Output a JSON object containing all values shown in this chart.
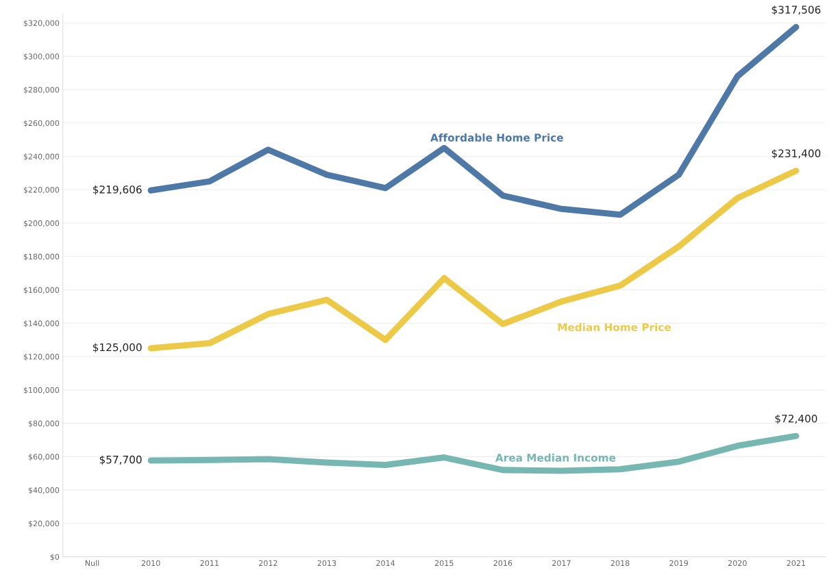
{
  "chart_data": {
    "type": "line",
    "categories": [
      "Null",
      "2010",
      "2011",
      "2012",
      "2013",
      "2014",
      "2015",
      "2016",
      "2017",
      "2018",
      "2019",
      "2020",
      "2021"
    ],
    "series": [
      {
        "name": "Affordable Home Price",
        "color": "#4e79a7",
        "values": [
          null,
          219606,
          225000,
          244000,
          229000,
          221000,
          245000,
          216500,
          208500,
          205000,
          229000,
          288000,
          317506
        ],
        "value_labels": [
          null,
          "$219,606",
          null,
          null,
          null,
          null,
          null,
          null,
          null,
          null,
          null,
          null,
          "$317,506"
        ]
      },
      {
        "name": "Median Home Price",
        "color": "#edc948",
        "values": [
          null,
          125000,
          128000,
          145500,
          154000,
          130000,
          167000,
          139500,
          153000,
          162500,
          186000,
          215000,
          231400
        ],
        "value_labels": [
          null,
          "$125,000",
          null,
          null,
          null,
          null,
          null,
          null,
          null,
          null,
          null,
          null,
          "$231,400"
        ]
      },
      {
        "name": "Area Median Income",
        "color": "#76b7b2",
        "values": [
          null,
          57700,
          58000,
          58500,
          56500,
          55000,
          59500,
          52000,
          51500,
          52500,
          57000,
          66500,
          72400
        ],
        "value_labels": [
          null,
          "$57,700",
          null,
          null,
          null,
          null,
          null,
          null,
          null,
          null,
          null,
          null,
          "$72,400"
        ]
      }
    ],
    "ylim": [
      0,
      325000
    ],
    "yticks": [
      {
        "value": 0,
        "label": "$0"
      },
      {
        "value": 20000,
        "label": "$20,000"
      },
      {
        "value": 40000,
        "label": "$40,000"
      },
      {
        "value": 60000,
        "label": "$60,000"
      },
      {
        "value": 80000,
        "label": "$80,000"
      },
      {
        "value": 100000,
        "label": "$100,000"
      },
      {
        "value": 120000,
        "label": "$120,000"
      },
      {
        "value": 140000,
        "label": "$140,000"
      },
      {
        "value": 160000,
        "label": "$160,000"
      },
      {
        "value": 180000,
        "label": "$180,000"
      },
      {
        "value": 200000,
        "label": "$200,000"
      },
      {
        "value": 220000,
        "label": "$220,000"
      },
      {
        "value": 240000,
        "label": "$240,000"
      },
      {
        "value": 260000,
        "label": "$260,000"
      },
      {
        "value": 280000,
        "label": "$280,000"
      },
      {
        "value": 300000,
        "label": "$300,000"
      },
      {
        "value": 320000,
        "label": "$320,000"
      }
    ],
    "grid": "y",
    "legend": false,
    "marker": "none",
    "line_style": "solid"
  }
}
